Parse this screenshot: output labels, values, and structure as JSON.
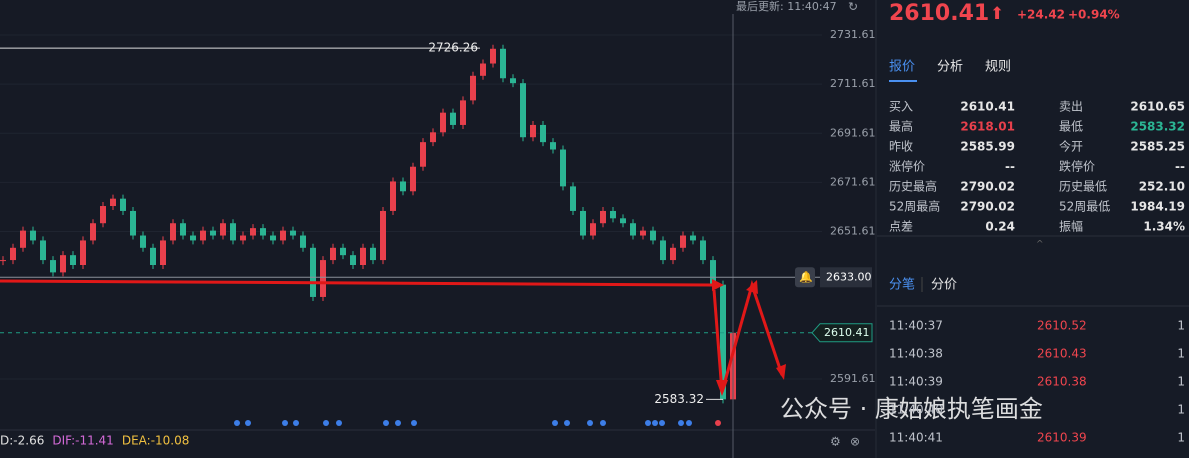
{
  "chart_data": {
    "type": "candlestick",
    "closes": [
      2640,
      2645,
      2652,
      2648,
      2640,
      2635,
      2642,
      2638,
      2648,
      2655,
      2662,
      2665,
      2660,
      2650,
      2645,
      2638,
      2648,
      2655,
      2650,
      2648,
      2652,
      2650,
      2655,
      2648,
      2650,
      2653,
      2650,
      2648,
      2652,
      2650,
      2645,
      2625,
      2640,
      2645,
      2642,
      2638,
      2645,
      2640,
      2660,
      2672,
      2668,
      2678,
      2688,
      2692,
      2700,
      2695,
      2705,
      2715,
      2720,
      2726,
      2714,
      2712,
      2690,
      2695,
      2688,
      2685,
      2670,
      2660,
      2650,
      2655,
      2660,
      2657,
      2655,
      2650,
      2652,
      2648,
      2640,
      2645,
      2650,
      2648,
      2640,
      2630,
      2583.32,
      2610.41
    ],
    "up_color": "#e8404c",
    "down_color": "#2bb594",
    "ylim": [
      2570.85,
      2745.85
    ],
    "yticks": [
      2731.61,
      2711.61,
      2691.61,
      2671.61,
      2651.61,
      2591.61
    ],
    "high_marker": 2726.26,
    "low_marker": 2583.32,
    "current_price": 2610.41,
    "alert_price": {
      "value": 2633,
      "label": "2633.00"
    },
    "last_update": "最后更新: 11:40:47",
    "indicators": [
      {
        "text": "D:-2.66",
        "color": "#e0e0e0"
      },
      {
        "text": "DIF:-11.41",
        "color": "#d46ad8"
      },
      {
        "text": "DEA:-10.08",
        "color": "#f0c040"
      }
    ],
    "watermark": "公众号 · 康姑娘执笔画金"
  },
  "quote_panel": {
    "price": "2610.41",
    "change": "+24.42",
    "change_pct": "+0.94%",
    "tabs": [
      "报价",
      "分析",
      "规则"
    ],
    "rows": [
      [
        {
          "label": "买入",
          "value": "2610.41"
        },
        {
          "label": "卖出",
          "value": "2610.65"
        }
      ],
      [
        {
          "label": "最高",
          "value": "2618.01",
          "color": "#e8404c"
        },
        {
          "label": "最低",
          "value": "2583.32",
          "color": "#2bb594"
        }
      ],
      [
        {
          "label": "昨收",
          "value": "2585.99"
        },
        {
          "label": "今开",
          "value": "2585.25"
        }
      ],
      [
        {
          "label": "涨停价",
          "value": "--"
        },
        {
          "label": "跌停价",
          "value": "--"
        }
      ],
      [
        {
          "label": "历史最高",
          "value": "2790.02"
        },
        {
          "label": "历史最低",
          "value": "252.10"
        }
      ],
      [
        {
          "label": "52周最高",
          "value": "2790.02"
        },
        {
          "label": "52周最低",
          "value": "1984.19"
        }
      ],
      [
        {
          "label": "点差",
          "value": "0.24"
        },
        {
          "label": "振幅",
          "value": "1.34%"
        }
      ]
    ],
    "trade_tabs": [
      "分笔",
      "分价"
    ],
    "trades": [
      {
        "time": "11:40:37",
        "price": "2610.52",
        "volume": "1"
      },
      {
        "time": "11:40:38",
        "price": "2610.43",
        "volume": "1"
      },
      {
        "time": "11:40:39",
        "price": "2610.38",
        "volume": "1"
      },
      {
        "time": "11:40:40",
        "volume": "1"
      },
      {
        "time": "11:40:41",
        "price": "2610.39",
        "volume": "1"
      }
    ]
  }
}
